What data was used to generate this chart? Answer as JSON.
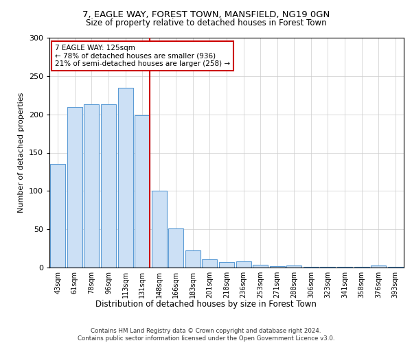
{
  "title1": "7, EAGLE WAY, FOREST TOWN, MANSFIELD, NG19 0GN",
  "title2": "Size of property relative to detached houses in Forest Town",
  "xlabel": "Distribution of detached houses by size in Forest Town",
  "ylabel": "Number of detached properties",
  "categories": [
    "43sqm",
    "61sqm",
    "78sqm",
    "96sqm",
    "113sqm",
    "131sqm",
    "148sqm",
    "166sqm",
    "183sqm",
    "201sqm",
    "218sqm",
    "236sqm",
    "253sqm",
    "271sqm",
    "288sqm",
    "306sqm",
    "323sqm",
    "341sqm",
    "358sqm",
    "376sqm",
    "393sqm"
  ],
  "values": [
    135,
    210,
    213,
    213,
    235,
    199,
    100,
    51,
    22,
    11,
    7,
    8,
    4,
    2,
    3,
    1,
    1,
    1,
    1,
    3,
    1
  ],
  "bar_color": "#cce0f5",
  "bar_edge_color": "#5b9bd5",
  "highlight_index": 5,
  "highlight_line_color": "#cc0000",
  "annotation_line1": "7 EAGLE WAY: 125sqm",
  "annotation_line2": "← 78% of detached houses are smaller (936)",
  "annotation_line3": "21% of semi-detached houses are larger (258) →",
  "annotation_box_color": "#ffffff",
  "annotation_box_edge": "#cc0000",
  "footnote": "Contains HM Land Registry data © Crown copyright and database right 2024.\nContains public sector information licensed under the Open Government Licence v3.0.",
  "ylim": [
    0,
    300
  ],
  "yticks": [
    0,
    50,
    100,
    150,
    200,
    250,
    300
  ],
  "background_color": "#ffffff",
  "grid_color": "#cccccc"
}
